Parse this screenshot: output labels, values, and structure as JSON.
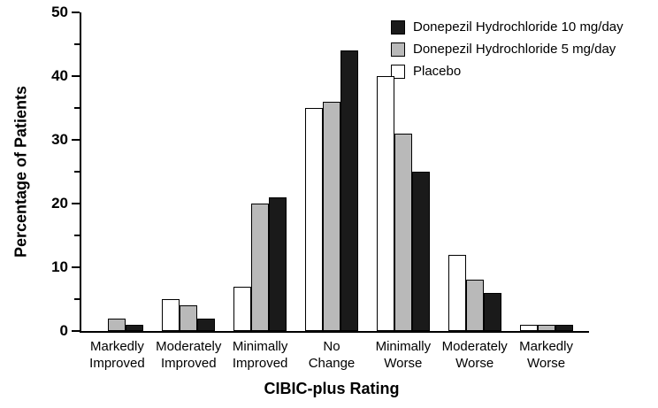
{
  "chart_data": {
    "type": "bar",
    "title": "",
    "xlabel": "CIBIC-plus Rating",
    "ylabel": "Percentage of Patients",
    "ylim": [
      0,
      50
    ],
    "yticks_major": [
      0,
      10,
      20,
      30,
      40,
      50
    ],
    "yticks_minor": [
      5,
      15,
      25,
      35,
      45
    ],
    "grid": false,
    "bar_edge_color": "#000000",
    "categories": [
      "Markedly\nImproved",
      "Moderately\nImproved",
      "Minimally\nImproved",
      "No\nChange",
      "Minimally\nWorse",
      "Moderately\nWorse",
      "Markedly\nWorse"
    ],
    "series": [
      {
        "name": "Placebo",
        "color": "#ffffff",
        "values": [
          0,
          5,
          7,
          35,
          40,
          12,
          1
        ]
      },
      {
        "name": "Donepezil Hydrochloride 5 mg/day",
        "color": "#b9b9b9",
        "values": [
          2,
          4,
          20,
          36,
          31,
          8,
          1
        ]
      },
      {
        "name": "Donepezil Hydrochloride 10 mg/day",
        "color": "#1a1a1a",
        "values": [
          1,
          2,
          21,
          44,
          25,
          6,
          1
        ]
      }
    ],
    "legend": {
      "position": "top-right",
      "order": [
        2,
        1,
        0
      ]
    }
  }
}
